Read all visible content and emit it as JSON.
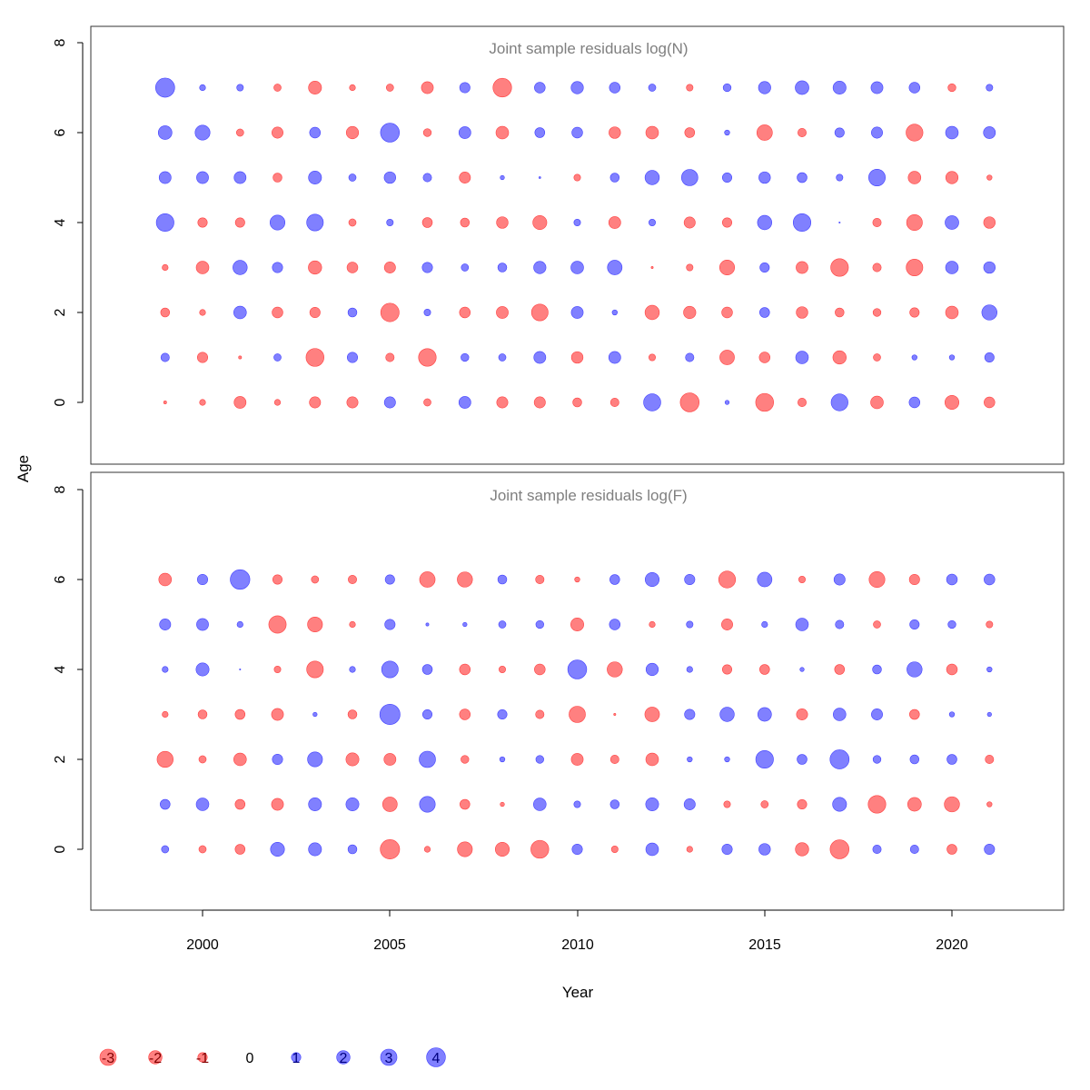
{
  "chart_data": {
    "type": "bubble",
    "xlabel": "Year",
    "ylabel": "Age",
    "xlim": [
      1997.0,
      2023.0
    ],
    "ylim": [
      -1.2,
      8.5
    ],
    "x_ticks": [
      2000,
      2005,
      2010,
      2015,
      2020
    ],
    "x_tick_labels": [
      "2000",
      "2005",
      "2010",
      "2015",
      "2020"
    ],
    "y_ticks": [
      0,
      2,
      4,
      6,
      8
    ],
    "y_tick_labels": [
      "0",
      "2",
      "4",
      "6",
      "8"
    ],
    "colors": {
      "positive": "#8080ff",
      "negative": "#ff8080",
      "positive_edge": "#4040ff",
      "negative_edge": "#ff4040"
    },
    "years": [
      1999,
      2000,
      2001,
      2002,
      2003,
      2004,
      2005,
      2006,
      2007,
      2008,
      2009,
      2010,
      2011,
      2012,
      2013,
      2014,
      2015,
      2016,
      2017,
      2018,
      2019,
      2020,
      2021
    ],
    "panels": [
      {
        "title": "Joint sample residuals log(N)",
        "ages": [
          0,
          1,
          2,
          3,
          4,
          5,
          6,
          7
        ],
        "residuals": [
          [
            -0.1,
            -0.4,
            -1.6,
            -0.4,
            -1.4,
            -1.4,
            1.4,
            -0.6,
            1.6,
            -1.4,
            -1.4,
            -0.9,
            -0.8,
            3.3,
            -4.0,
            0.2,
            -3.6,
            -0.8,
            3.2,
            -1.8,
            1.3,
            -2.2,
            -1.3
          ],
          [
            0.8,
            -1.2,
            -0.1,
            0.6,
            -3.6,
            1.2,
            -0.8,
            -3.5,
            0.7,
            0.6,
            1.6,
            -1.5,
            1.6,
            -0.5,
            0.8,
            -2.4,
            -1.3,
            1.8,
            -2.0,
            -0.6,
            0.3,
            0.3,
            1.0
          ],
          [
            -0.9,
            -0.4,
            1.8,
            -1.3,
            -1.2,
            0.9,
            -3.8,
            0.5,
            -1.3,
            -1.6,
            -3.1,
            1.6,
            0.3,
            -2.3,
            -1.7,
            -1.3,
            1.1,
            -1.5,
            -0.9,
            -0.7,
            -1.0,
            -1.8,
            2.6
          ],
          [
            -0.4,
            -1.8,
            2.3,
            1.2,
            -2.0,
            -1.3,
            -1.4,
            1.2,
            0.6,
            0.9,
            1.7,
            1.8,
            2.4,
            -0.05,
            -0.5,
            -2.5,
            1.0,
            -1.6,
            -3.5,
            -0.8,
            -3.1,
            1.8,
            1.5
          ],
          [
            3.5,
            -1.0,
            -1.0,
            2.5,
            3.1,
            -0.6,
            0.5,
            -1.1,
            -0.9,
            -1.5,
            -2.2,
            0.5,
            -1.6,
            0.5,
            -1.4,
            -1.0,
            2.3,
            3.5,
            0.02,
            -0.8,
            -2.8,
            2.1,
            -1.5
          ],
          [
            1.6,
            1.6,
            1.6,
            -0.9,
            1.9,
            0.6,
            1.5,
            0.8,
            -1.4,
            0.2,
            0.04,
            -0.5,
            0.9,
            2.3,
            3.0,
            1.0,
            1.5,
            1.1,
            0.5,
            3.1,
            -1.8,
            -1.7,
            -0.3
          ],
          [
            2.1,
            2.5,
            -0.6,
            -1.4,
            1.3,
            -1.7,
            4.0,
            -0.7,
            1.6,
            -1.8,
            1.1,
            1.3,
            -1.5,
            -1.8,
            -1.1,
            0.3,
            -2.7,
            -0.8,
            1.0,
            1.4,
            -3.2,
            1.8,
            1.6
          ],
          [
            4.1,
            0.4,
            0.5,
            -0.6,
            -1.9,
            -0.4,
            -0.6,
            -1.6,
            1.2,
            -3.9,
            1.3,
            1.7,
            1.3,
            0.6,
            -0.5,
            0.7,
            1.7,
            2.1,
            1.9,
            1.6,
            1.3,
            -0.7,
            0.5
          ]
        ]
      },
      {
        "title": "Joint sample residuals log(F)",
        "ages": [
          0,
          1,
          2,
          3,
          4,
          5,
          6
        ],
        "residuals": [
          [
            0.6,
            -0.6,
            -1.1,
            2.2,
            1.9,
            0.9,
            -4.2,
            -0.4,
            -2.5,
            -2.2,
            -3.6,
            1.2,
            -0.5,
            1.8,
            -0.4,
            1.2,
            1.5,
            -2.0,
            -4.0,
            0.8,
            0.8,
            -1.1,
            1.2
          ],
          [
            1.1,
            1.8,
            -1.1,
            -1.6,
            1.9,
            1.9,
            -2.4,
            2.8,
            -1.1,
            -0.2,
            1.8,
            0.5,
            0.9,
            1.9,
            1.4,
            -0.5,
            -0.6,
            -1.0,
            2.2,
            -3.5,
            -2.1,
            -2.6,
            -0.3
          ],
          [
            -2.9,
            -0.6,
            -1.8,
            1.2,
            2.5,
            -1.9,
            -1.6,
            3.0,
            -0.7,
            0.3,
            0.7,
            -1.6,
            -0.8,
            -1.8,
            0.3,
            0.3,
            3.5,
            1.1,
            4.1,
            0.7,
            0.9,
            1.1,
            -0.8
          ],
          [
            -0.4,
            -0.9,
            -1.1,
            -1.6,
            0.2,
            -0.9,
            4.6,
            1.0,
            -1.3,
            1.0,
            -0.8,
            -3.0,
            -0.05,
            -2.4,
            1.2,
            2.3,
            2.1,
            -1.4,
            1.8,
            1.4,
            -1.1,
            0.3,
            0.2
          ],
          [
            0.4,
            1.9,
            0.02,
            -0.5,
            -3.1,
            0.4,
            3.1,
            1.1,
            -1.3,
            -0.5,
            -1.3,
            4.0,
            -2.6,
            1.7,
            0.4,
            -1.0,
            -1.1,
            0.2,
            -1.1,
            0.9,
            2.6,
            -1.3,
            0.3
          ],
          [
            1.4,
            1.6,
            0.4,
            -3.4,
            -2.5,
            -0.4,
            1.2,
            0.1,
            0.2,
            0.6,
            0.7,
            -1.9,
            1.3,
            -0.4,
            0.5,
            -1.4,
            0.4,
            1.8,
            0.8,
            -0.6,
            1.0,
            0.7,
            -0.5
          ],
          [
            -1.8,
            1.2,
            4.3,
            -1.0,
            -0.6,
            -0.8,
            1.0,
            -2.7,
            -2.6,
            0.9,
            -0.8,
            -0.3,
            1.1,
            2.2,
            1.2,
            -3.2,
            2.4,
            -0.5,
            1.4,
            -2.8,
            -1.2,
            1.3,
            1.3
          ]
        ]
      }
    ],
    "legend": {
      "placement": "bottom-left",
      "values": [
        -3,
        -2,
        -1,
        0,
        1,
        2,
        3,
        4
      ],
      "labels": [
        "-3",
        "-2",
        "-1",
        "0",
        "1",
        "2",
        "3",
        "4"
      ]
    }
  }
}
